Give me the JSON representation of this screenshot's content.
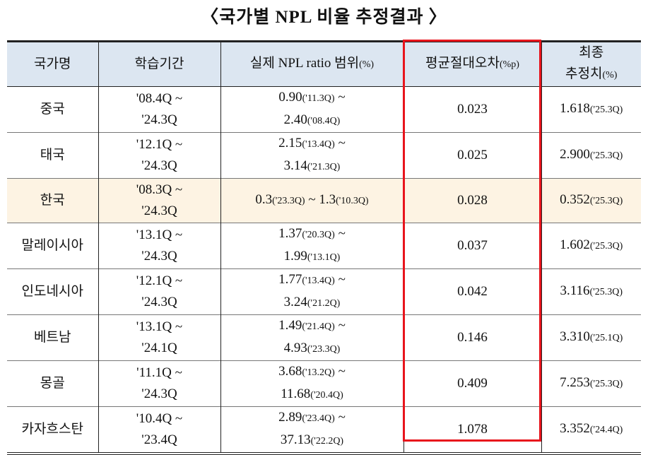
{
  "title": "〈국가별 NPL 비율 추정결과 〉",
  "headers": {
    "country": "국가명",
    "period": "학습기간",
    "range_main": "실제 NPL ratio 범위",
    "range_unit": "(%)",
    "mae_main": "평균절대오차",
    "mae_unit": "(%p)",
    "final_line1": "최종",
    "final_line2": "추정치",
    "final_unit": "(%)"
  },
  "highlight_color": "#e8141c",
  "rows": [
    {
      "country": "중국",
      "p1": "'08.4Q ~",
      "p2": "'24.3Q",
      "r1v": "0.90",
      "r1q": "('11.3Q)",
      "r2v": "2.40",
      "r2q": "('08.4Q)",
      "mae": "0.023",
      "fv": "1.618",
      "fq": "('25.3Q)"
    },
    {
      "country": "태국",
      "p1": "'12.1Q ~",
      "p2": "'24.3Q",
      "r1v": "2.15",
      "r1q": "('13.4Q)",
      "r2v": "3.14",
      "r2q": "('21.3Q)",
      "mae": "0.025",
      "fv": "2.900",
      "fq": "('25.3Q)"
    },
    {
      "country": "한국",
      "p1": "'08.3Q ~",
      "p2": "'24.3Q",
      "r1v": "0.3",
      "r1q": "('23.3Q)",
      "r2v": "1.3",
      "r2q": "('10.3Q)",
      "mae": "0.028",
      "fv": "0.352",
      "fq": "('25.3Q)"
    },
    {
      "country": "말레이시아",
      "p1": "'13.1Q ~",
      "p2": "'24.3Q",
      "r1v": "1.37",
      "r1q": "('20.3Q)",
      "r2v": "1.99",
      "r2q": "('13.1Q)",
      "mae": "0.037",
      "fv": "1.602",
      "fq": "('25.3Q)"
    },
    {
      "country": "인도네시아",
      "p1": "'12.1Q ~",
      "p2": "'24.3Q",
      "r1v": "1.77",
      "r1q": "('13.4Q)",
      "r2v": "3.24",
      "r2q": "('21.2Q)",
      "mae": "0.042",
      "fv": "3.116",
      "fq": "('25.3Q)"
    },
    {
      "country": "베트남",
      "p1": "'13.1Q ~",
      "p2": "'24.1Q",
      "r1v": "1.49",
      "r1q": "('21.4Q)",
      "r2v": "4.93",
      "r2q": "('23.3Q)",
      "mae": "0.146",
      "fv": "3.310",
      "fq": "('25.1Q)"
    },
    {
      "country": "몽골",
      "p1": "'11.1Q ~",
      "p2": "'24.3Q",
      "r1v": "3.68",
      "r1q": "('13.2Q)",
      "r2v": "11.68",
      "r2q": "('20.4Q)",
      "mae": "0.409",
      "fv": "7.253",
      "fq": "('25.3Q)"
    },
    {
      "country": "카자흐스탄",
      "p1": "'10.4Q ~",
      "p2": "'23.4Q",
      "r1v": "2.89",
      "r1q": "('23.4Q)",
      "r2v": "37.13",
      "r2q": "('22.2Q)",
      "mae": "1.078",
      "fv": "3.352",
      "fq": "('24.4Q)"
    }
  ]
}
